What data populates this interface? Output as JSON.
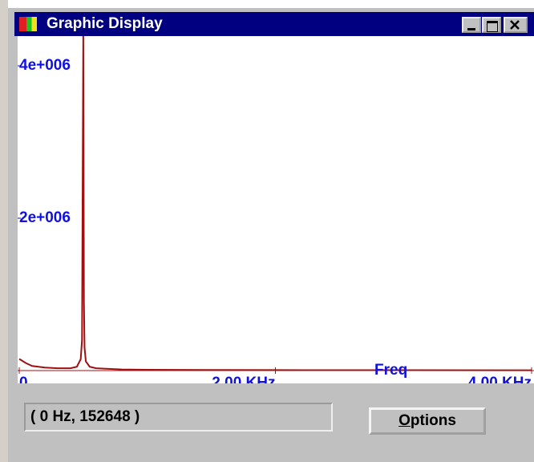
{
  "window": {
    "title": "Graphic Display"
  },
  "chart_data": {
    "type": "line",
    "x_label": "Freq",
    "x": [
      0,
      50,
      100,
      200,
      300,
      400,
      450,
      480,
      490,
      495,
      500,
      505,
      510,
      520,
      550,
      600,
      800,
      1000,
      1500,
      2000,
      3000,
      4000
    ],
    "series": [
      {
        "color": "#a01010",
        "values": [
          152648,
          100000,
          60000,
          40000,
          30000,
          30000,
          50000,
          150000,
          400000,
          2370000,
          4390000,
          900000,
          300000,
          120000,
          50000,
          30000,
          15000,
          10000,
          8000,
          6000,
          5000,
          4000
        ]
      }
    ],
    "xlim": [
      0,
      4000
    ],
    "xticks": [
      {
        "value": 0,
        "label": "0"
      },
      {
        "value": 2000,
        "label": "2.00 KHz"
      },
      {
        "value": 4000,
        "label": "4.00 KHz"
      }
    ],
    "ylim": [
      0,
      4390000
    ],
    "yticks": [
      {
        "value": 2000000,
        "label": "2e+006"
      },
      {
        "value": 4000000,
        "label": "4e+006"
      }
    ]
  },
  "status": "( 0 Hz, 152648 )",
  "options_button": "Options"
}
